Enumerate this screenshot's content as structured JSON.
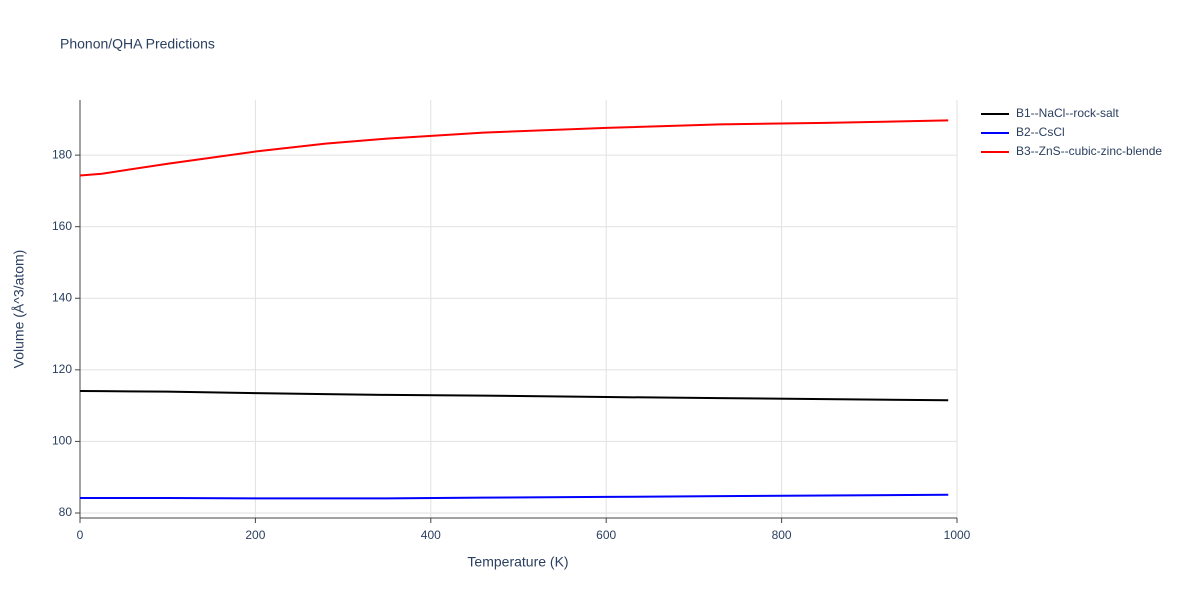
{
  "chart_data": {
    "type": "line",
    "title": "Phonon/QHA Predictions",
    "x_label": "Temperature (K)",
    "y_label": "Volume (Å^3/atom)",
    "x": [
      0,
      25,
      100,
      200,
      280,
      350,
      460,
      600,
      730,
      850,
      990
    ],
    "series": [
      {
        "name": "B1--NaCl--rock-salt",
        "color": "#000000",
        "values": [
          114.1,
          114.05,
          113.9,
          113.5,
          113.2,
          113.0,
          112.8,
          112.4,
          112.1,
          111.8,
          111.5
        ]
      },
      {
        "name": "B2--CsCl",
        "color": "#0000ff",
        "values": [
          84.2,
          84.2,
          84.2,
          84.1,
          84.1,
          84.1,
          84.3,
          84.5,
          84.7,
          84.9,
          85.1
        ]
      },
      {
        "name": "B3--ZnS--cubic-zinc-blende",
        "color": "#ff0000",
        "values": [
          174.3,
          174.8,
          177.6,
          181.0,
          183.2,
          184.6,
          186.3,
          187.6,
          188.6,
          189.0,
          189.7
        ]
      }
    ],
    "xlim": [
      0,
      1000
    ],
    "xticks": [
      0,
      200,
      400,
      600,
      800,
      1000
    ],
    "ylim": [
      78.6,
      195.4
    ],
    "yticks": [
      80,
      100,
      120,
      140,
      160,
      180
    ],
    "grid": true,
    "legend": "right"
  }
}
